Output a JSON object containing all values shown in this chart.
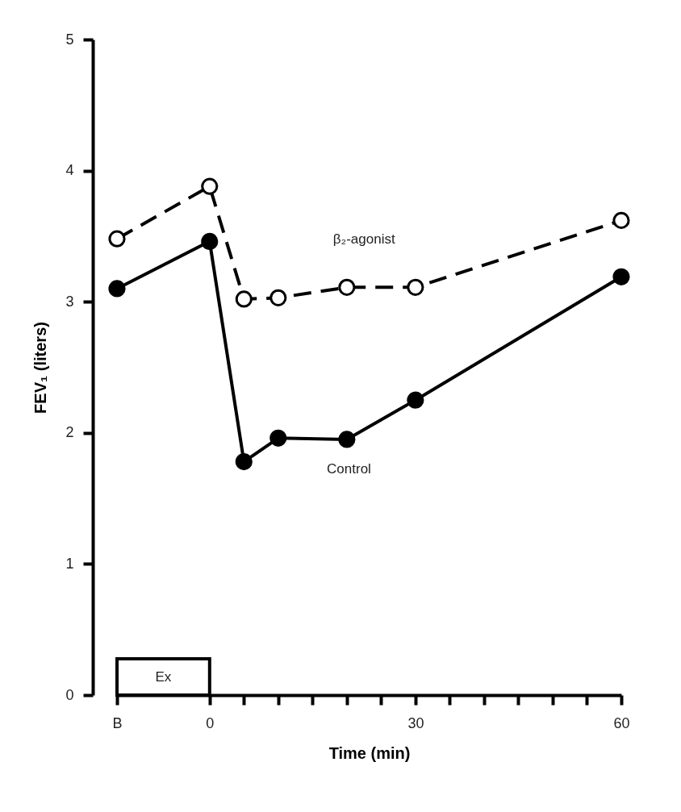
{
  "chart_data": {
    "type": "line",
    "xlabel": "Time (min)",
    "ylabel": "FEV₁ (liters)",
    "x": [
      -13.5,
      0,
      5,
      10,
      20,
      30,
      60
    ],
    "series": [
      {
        "name": "β₂-agonist",
        "color": "#000000",
        "line_style": "dashed",
        "values": [
          3.48,
          3.88,
          3.02,
          3.03,
          3.11,
          3.11,
          3.62
        ]
      },
      {
        "name": "Control",
        "color": "#000000",
        "line_style": "solid",
        "values": [
          3.1,
          3.46,
          1.78,
          1.96,
          1.95,
          2.25,
          3.19
        ]
      }
    ],
    "xlim": [
      -13.5,
      60
    ],
    "xticks": [
      {
        "value": -13.5,
        "label": "B"
      },
      0,
      {
        "value": 5,
        "label": null
      },
      {
        "value": 10,
        "label": null
      },
      {
        "value": 15,
        "label": null
      },
      {
        "value": 20,
        "label": null
      },
      {
        "value": 25,
        "label": null
      },
      30,
      {
        "value": 35,
        "label": null
      },
      {
        "value": 40,
        "label": null
      },
      {
        "value": 45,
        "label": null
      },
      {
        "value": 50,
        "label": null
      },
      {
        "value": 55,
        "label": null
      },
      60
    ],
    "ylim": [
      0,
      5
    ],
    "yticks": [
      0,
      1,
      2,
      3,
      4,
      5
    ],
    "bands": [
      {
        "axis": "x",
        "from": -13.5,
        "to": 0,
        "label": "Ex"
      }
    ],
    "marker": "circle",
    "grid": false,
    "legend": false
  }
}
